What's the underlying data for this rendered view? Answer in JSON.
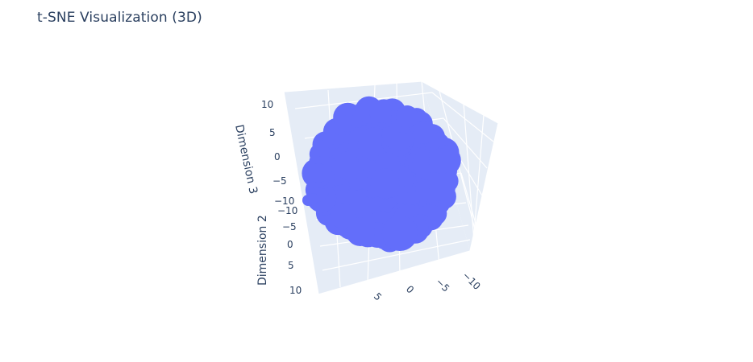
{
  "chart_data": {
    "type": "scatter3d",
    "title": "t-SNE Visualization (3D)",
    "marker_color": "#636efa",
    "pane_color": "#e5ecf6",
    "grid_color": "#ffffff",
    "axes": {
      "x": {
        "label": "",
        "range": [
          -10,
          10
        ],
        "ticks": [
          "−10",
          "−5",
          "0",
          "5"
        ]
      },
      "y": {
        "label": "Dimension 2",
        "range": [
          -10,
          10
        ],
        "ticks": [
          "−10",
          "−5",
          "0",
          "5",
          "10"
        ]
      },
      "z": {
        "label": "Dimension 3",
        "range": [
          -10,
          10
        ],
        "ticks": [
          "10",
          "5",
          "0",
          "−5",
          "−10"
        ]
      }
    }
  }
}
